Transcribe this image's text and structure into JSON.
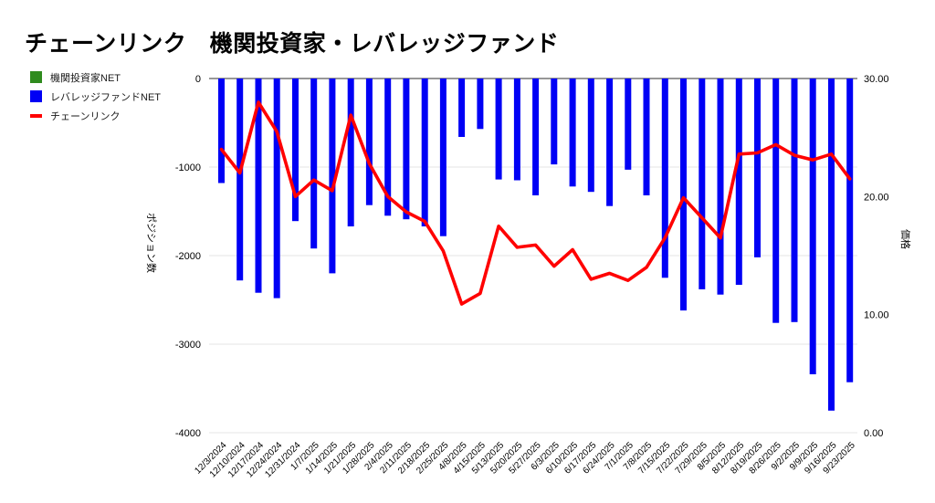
{
  "title": "チェーンリンク　機関投資家・レバレッジファンド",
  "legend": {
    "items": [
      {
        "label": "機関投資家NET",
        "color": "#2f8b1e",
        "shape": "square"
      },
      {
        "label": "レバレッジファンドNET",
        "color": "#0000f5",
        "shape": "square"
      },
      {
        "label": "チェーンリンク",
        "color": "#ff0000",
        "shape": "dash"
      }
    ]
  },
  "chart_data": {
    "type": "bar",
    "title": "チェーンリンク　機関投資家・レバレッジファンド",
    "categories": [
      "12/3/2024",
      "12/10/2024",
      "12/17/2024",
      "12/24/2024",
      "12/31/2024",
      "1/7/2025",
      "1/14/2025",
      "1/21/2025",
      "1/28/2025",
      "2/4/2025",
      "2/11/2025",
      "2/18/2025",
      "2/25/2025",
      "4/8/2025",
      "4/15/2025",
      "5/13/2025",
      "5/20/2025",
      "5/27/2025",
      "6/3/2025",
      "6/10/2025",
      "6/17/2025",
      "6/24/2025",
      "7/1/2025",
      "7/8/2025",
      "7/15/2025",
      "7/22/2025",
      "7/29/2025",
      "8/5/2025",
      "8/12/2025",
      "8/19/2025",
      "8/26/2025",
      "9/2/2025",
      "9/9/2025",
      "9/16/2025",
      "9/23/2025"
    ],
    "series": [
      {
        "name": "機関投資家NET",
        "type": "bar",
        "axis": "left",
        "color": "#2f8b1e",
        "values": [
          0,
          0,
          0,
          0,
          0,
          0,
          0,
          0,
          0,
          0,
          0,
          0,
          0,
          0,
          0,
          0,
          0,
          0,
          0,
          0,
          0,
          0,
          0,
          0,
          0,
          0,
          0,
          0,
          0,
          0,
          0,
          0,
          0,
          0,
          0
        ]
      },
      {
        "name": "レバレッジファンドNET",
        "type": "bar",
        "axis": "left",
        "color": "#0000f5",
        "values": [
          -1180,
          -2280,
          -2420,
          -2480,
          -1610,
          -1920,
          -2200,
          -1670,
          -1430,
          -1550,
          -1590,
          -1670,
          -1780,
          -660,
          -570,
          -1140,
          -1150,
          -1320,
          -970,
          -1220,
          -1280,
          -1440,
          -1030,
          -1320,
          -2250,
          -2620,
          -2380,
          -2440,
          -2330,
          -2020,
          -2760,
          -2750,
          -3340,
          -3750,
          -3430
        ]
      },
      {
        "name": "チェーンリンク",
        "type": "line",
        "axis": "right",
        "color": "#ff0000",
        "values": [
          24.0,
          22.0,
          28.0,
          25.5,
          20.0,
          21.4,
          20.5,
          26.9,
          22.8,
          20.0,
          18.7,
          17.9,
          15.4,
          10.9,
          11.8,
          17.5,
          15.7,
          15.9,
          14.1,
          15.5,
          13.0,
          13.5,
          12.9,
          14.0,
          16.5,
          19.9,
          18.2,
          16.5,
          23.6,
          23.7,
          24.4,
          23.5,
          23.1,
          23.6,
          21.5
        ]
      }
    ],
    "left_axis": {
      "title": "ポジション数",
      "ticks": [
        "0",
        "-1000",
        "-2000",
        "-3000",
        "-4000"
      ],
      "range": [
        -4000,
        0
      ]
    },
    "right_axis": {
      "title": "価格",
      "ticks": [
        "30.00",
        "20.00",
        "10.00",
        "0.00"
      ],
      "range": [
        0,
        30
      ]
    },
    "legend_position": "top-left",
    "grid": true,
    "gridline_color": "#e6e6e6",
    "zero_line_color": "#757575"
  }
}
